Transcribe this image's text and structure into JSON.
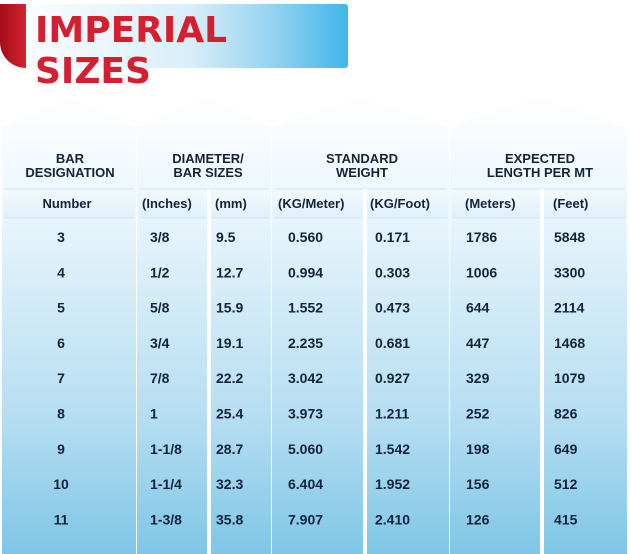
{
  "title": "IMPERIAL SIZES",
  "groups": [
    {
      "lines": [
        "BAR",
        "DESIGNATION"
      ],
      "subs": [
        "Number"
      ]
    },
    {
      "lines": [
        "DIAMETER/",
        "BAR SIZES"
      ],
      "subs": [
        "(Inches)",
        "(mm)"
      ]
    },
    {
      "lines": [
        "STANDARD",
        "WEIGHT"
      ],
      "subs": [
        "(KG/Meter)",
        "(KG/Foot)"
      ]
    },
    {
      "lines": [
        "EXPECTED",
        "LENGTH PER MT"
      ],
      "subs": [
        "(Meters)",
        "(Feet)"
      ]
    }
  ],
  "rows": [
    [
      "3",
      "3/8",
      "9.5",
      "0.560",
      "0.171",
      "1786",
      "5848"
    ],
    [
      "4",
      "1/2",
      "12.7",
      "0.994",
      "0.303",
      "1006",
      "3300"
    ],
    [
      "5",
      "5/8",
      "15.9",
      "1.552",
      "0.473",
      "644",
      "2114"
    ],
    [
      "6",
      "3/4",
      "19.1",
      "2.235",
      "0.681",
      "447",
      "1468"
    ],
    [
      "7",
      "7/8",
      "22.2",
      "3.042",
      "0.927",
      "329",
      "1079"
    ],
    [
      "8",
      "1",
      "25.4",
      "3.973",
      "1.211",
      "252",
      "826"
    ],
    [
      "9",
      "1-1/8",
      "28.7",
      "5.060",
      "1.542",
      "198",
      "649"
    ],
    [
      "10",
      "1-1/4",
      "32.3",
      "6.404",
      "1.952",
      "156",
      "512"
    ],
    [
      "11",
      "1-3/8",
      "35.8",
      "7.907",
      "2.410",
      "126",
      "415"
    ]
  ],
  "colors": {
    "title": "#d51f2e",
    "banner_tab": "#c01b27",
    "column_top": "#ffffff",
    "column_bottom": "#7fc6e6",
    "text": "#14233a"
  }
}
